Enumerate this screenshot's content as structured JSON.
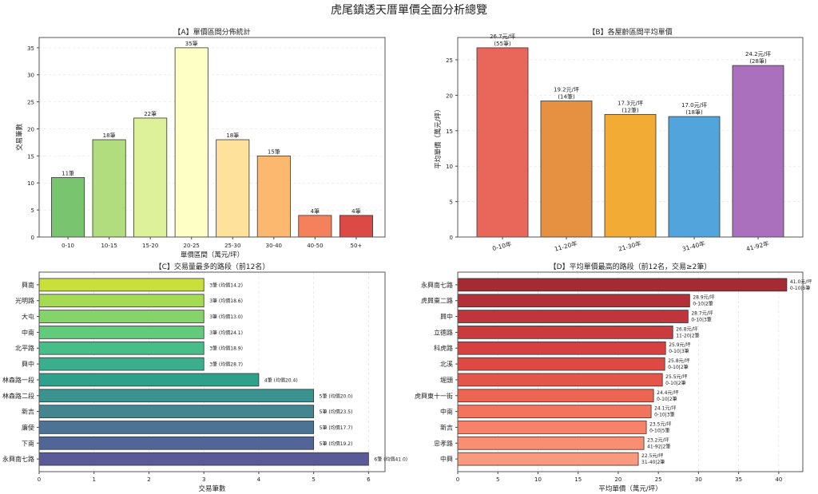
{
  "title": "虎尾鎮透天厝單價全面分析總覽",
  "chart_data": [
    {
      "id": "A",
      "type": "bar",
      "title": "【A】單價區間分佈統計",
      "xlabel": "單價區間（萬元/坪）",
      "ylabel": "交易筆數",
      "ylim": [
        0,
        36.9
      ],
      "yticks": [
        0,
        5,
        10,
        15,
        20,
        25,
        30,
        35
      ],
      "grid": true,
      "categories": [
        "0-10",
        "10-15",
        "15-20",
        "20-25",
        "25-30",
        "30-40",
        "40-50",
        "50+"
      ],
      "values": [
        11,
        18,
        22,
        35,
        18,
        15,
        4,
        4
      ],
      "labels": [
        "11筆",
        "18筆",
        "22筆",
        "35筆",
        "18筆",
        "15筆",
        "4筆",
        "4筆"
      ],
      "colors": [
        "#79c46f",
        "#b2dd7e",
        "#ddf09a",
        "#feffc5",
        "#fee19a",
        "#fdb870",
        "#f4815c",
        "#db4a44"
      ]
    },
    {
      "id": "B",
      "type": "bar",
      "title": "【B】各屋齡區間平均單價",
      "xlabel": "",
      "ylabel": "平均單價（萬元/坪）",
      "ylim": [
        0,
        28.15
      ],
      "yticks": [
        0,
        5,
        10,
        15,
        20,
        25
      ],
      "grid": true,
      "categories": [
        "0-10年",
        "11-20年",
        "21-30年",
        "31-40年",
        "41-92年"
      ],
      "values": [
        26.7,
        19.2,
        17.3,
        17.0,
        24.2
      ],
      "labels": [
        [
          "26.7元/坪",
          "(55筆)"
        ],
        [
          "19.2元/坪",
          "(14筆)"
        ],
        [
          "17.3元/坪",
          "(12筆)"
        ],
        [
          "17.0元/坪",
          "(18筆)"
        ],
        [
          "24.2元/坪",
          "(28筆)"
        ]
      ],
      "colors": [
        "#e8665a",
        "#e69142",
        "#f2ab35",
        "#52a5dc",
        "#aa70bd"
      ]
    },
    {
      "id": "C",
      "type": "barh",
      "title": "【C】交易量最多的路段（前12名）",
      "xlabel": "交易筆數",
      "ylabel": "",
      "xlim": [
        0,
        6.3
      ],
      "xticks": [
        0,
        1,
        2,
        3,
        4,
        5,
        6
      ],
      "grid": true,
      "categories": [
        "興南",
        "光明路",
        "大屯",
        "中南",
        "北平路",
        "興中",
        "林森路一段",
        "林森路二段",
        "新吉",
        "廉使",
        "下南",
        "永興南七路"
      ],
      "values": [
        3,
        3,
        3,
        3,
        3,
        3,
        4,
        5,
        5,
        5,
        5,
        6
      ],
      "labels": [
        "3筆 (均價14.2)",
        "3筆 (均價18.6)",
        "3筆 (均價13.0)",
        "3筆 (均價24.1)",
        "3筆 (均價18.9)",
        "3筆 (均價28.7)",
        "4筆 (均價20.4)",
        "5筆 (均價20.0)",
        "5筆 (均價23.5)",
        "5筆 (均價17.7)",
        "5筆 (均價19.2)",
        "6筆 (均價41.0)"
      ],
      "colors": [
        "#c9df3a",
        "#a5db52",
        "#85d46a",
        "#62cb7c",
        "#47be88",
        "#3bae8d",
        "#2fa08c",
        "#3a938f",
        "#448590",
        "#4c7393",
        "#516596",
        "#595a96"
      ]
    },
    {
      "id": "D",
      "type": "barh",
      "title": "【D】平均單價最高的路段（前12名，交易≥2筆）",
      "xlabel": "平均單價（萬元/坪）",
      "ylabel": "",
      "xlim": [
        0,
        43
      ],
      "xticks": [
        0,
        5,
        10,
        15,
        20,
        25,
        30,
        35,
        40
      ],
      "grid": true,
      "categories": [
        "永興南七路",
        "虎興東二路",
        "興中",
        "立德路",
        "科虎路",
        "北溪",
        "堀頭",
        "虎興東十一街",
        "中南",
        "新吉",
        "忠孝路",
        "中興"
      ],
      "values": [
        41.0,
        28.9,
        28.7,
        26.8,
        25.9,
        25.8,
        25.5,
        24.4,
        24.1,
        23.5,
        23.2,
        22.5
      ],
      "labels": [
        [
          "41.0元/坪",
          "0-10|6筆"
        ],
        [
          "28.9元/坪",
          "0-10|2筆"
        ],
        [
          "28.7元/坪",
          "0-10|3筆"
        ],
        [
          "26.8元/坪",
          "11-20|2筆"
        ],
        [
          "25.9元/坪",
          "0-10|3筆"
        ],
        [
          "25.8元/坪",
          "0-10|2筆"
        ],
        [
          "25.5元/坪",
          "0-10|2筆"
        ],
        [
          "24.4元/坪",
          "0-10|2筆"
        ],
        [
          "24.1元/坪",
          "0-10|3筆"
        ],
        [
          "23.5元/坪",
          "0-10|5筆"
        ],
        [
          "23.2元/坪",
          "41-92|2筆"
        ],
        [
          "22.5元/坪",
          "31-40|2筆"
        ]
      ],
      "colors": [
        "#a52a34",
        "#b42f37",
        "#c0353b",
        "#cb3a3d",
        "#d6403f",
        "#de4a43",
        "#e5564a",
        "#ec6552",
        "#f1745d",
        "#f58269",
        "#f88f73",
        "#f9997d"
      ]
    }
  ]
}
